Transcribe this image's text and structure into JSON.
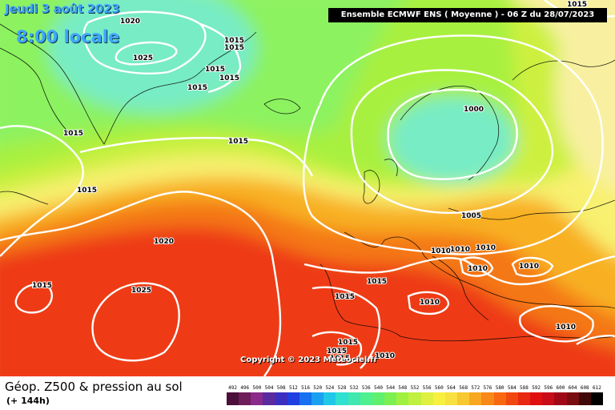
{
  "header": {
    "date_label": "Jeudi 3 août 2023",
    "time_label": "8:00 locale",
    "model_label": "Ensemble ECMWF ENS  ( Moyenne )  -  06 Z du 28/07/2023"
  },
  "map": {
    "copyright": "Copyright © 2023 Meteociel.fr",
    "isobar_labels": [
      "1020",
      "1025",
      "1015",
      "1015",
      "1015",
      "1015",
      "1015",
      "1015",
      "1015",
      "1015",
      "1000",
      "1005",
      "1010",
      "1010",
      "1010",
      "1010",
      "1010",
      "1010",
      "1020",
      "1025",
      "1015",
      "1015",
      "1015",
      "1015",
      "1015",
      "1015",
      "1010",
      "1010",
      "1015"
    ]
  },
  "legend": {
    "title": "Géop. Z500 & pression au sol",
    "subtitle": "(+ 144h)",
    "scale_values": [
      "492",
      "496",
      "500",
      "504",
      "508",
      "512",
      "516",
      "520",
      "524",
      "528",
      "532",
      "536",
      "540",
      "544",
      "548",
      "552",
      "556",
      "560",
      "564",
      "568",
      "572",
      "576",
      "580",
      "584",
      "588",
      "592",
      "596",
      "600",
      "604",
      "608",
      "612"
    ],
    "scale_colors": [
      "#4b0f3a",
      "#6e1c5a",
      "#8a2a8a",
      "#5a2aa0",
      "#3b2fc0",
      "#1f3fe0",
      "#1670f0",
      "#1aa0f0",
      "#20c8e8",
      "#30e0d0",
      "#40e8b0",
      "#50f090",
      "#60f070",
      "#7cf050",
      "#a0f040",
      "#c0f040",
      "#e0f040",
      "#f8f040",
      "#f8e040",
      "#f8c830",
      "#f8a820",
      "#f88818",
      "#f86810",
      "#f04810",
      "#e82810",
      "#e01010",
      "#c80c18",
      "#a00818",
      "#780c10",
      "#400808",
      "#000000"
    ],
    "field_colors": {
      "cyan": "#78ecc4",
      "light_green": "#8cf260",
      "green": "#a8f040",
      "yellow_green": "#cdf040",
      "yellow": "#f8f070",
      "light_yellow": "#f8f0a0",
      "orange": "#f8b020",
      "dark_orange": "#f47818",
      "red": "#ee3a12"
    }
  }
}
